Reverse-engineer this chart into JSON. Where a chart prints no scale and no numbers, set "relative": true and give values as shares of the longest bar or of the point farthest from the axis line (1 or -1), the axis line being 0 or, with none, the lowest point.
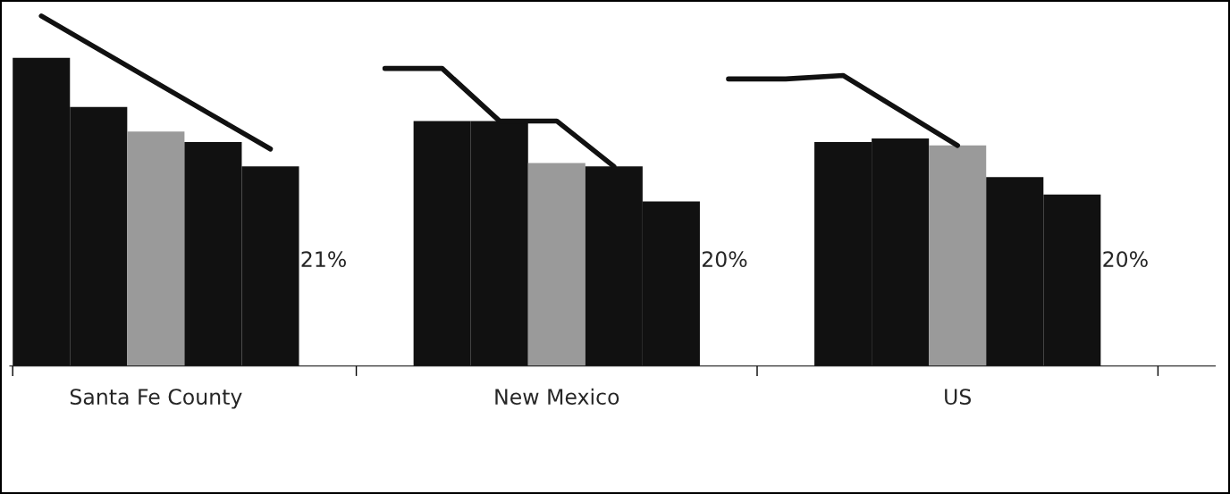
{
  "chart_data": {
    "type": "bar",
    "relative": true,
    "categories": [
      null,
      null,
      "Santa Fe County",
      null,
      null,
      null,
      null,
      null,
      null,
      "New Mexico",
      null,
      null,
      null,
      null,
      null,
      null,
      "US",
      null,
      null
    ],
    "series": [
      {
        "colors": [
          "#111111",
          "#111111",
          "#9a9a9a",
          "#111111",
          "#111111",
          null,
          null,
          "#111111",
          "#111111",
          "#9a9a9a",
          "#111111",
          "#111111",
          null,
          null,
          "#111111",
          "#111111",
          "#9a9a9a",
          "#111111",
          "#111111"
        ],
        "values": [
          0.88,
          0.74,
          0.67,
          0.64,
          0.57,
          null,
          null,
          0.7,
          0.7,
          0.58,
          0.57,
          0.47,
          null,
          null,
          0.64,
          0.65,
          0.63,
          0.54,
          0.49
        ]
      },
      {
        "type": "line",
        "color": "#111111",
        "values": [
          1.0,
          0.905,
          0.81,
          0.715,
          0.62,
          null,
          0.85,
          0.85,
          0.7,
          0.7,
          0.57,
          null,
          0.82,
          0.82,
          0.83,
          0.73,
          0.63,
          null,
          null
        ]
      }
    ],
    "annotations": [
      "21%",
      "20%",
      "20%"
    ],
    "grid": false,
    "legend": false
  }
}
